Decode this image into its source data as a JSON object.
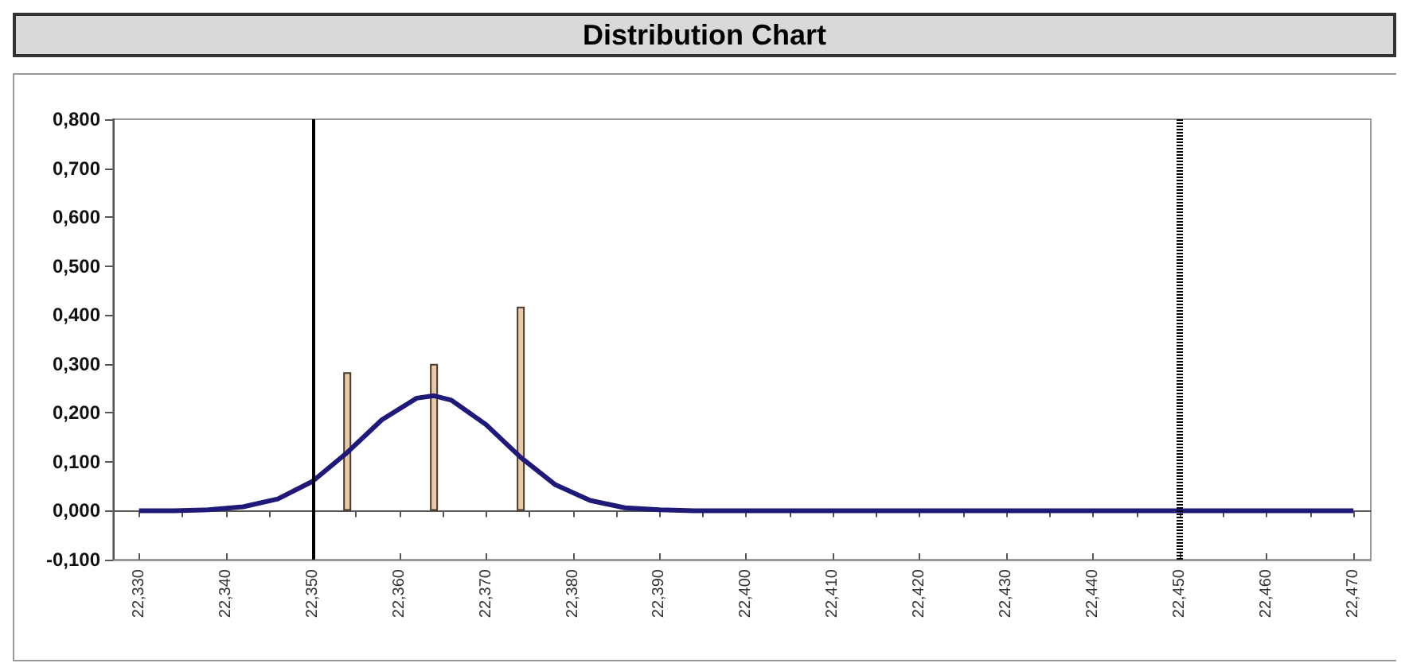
{
  "chart_data": {
    "type": "bar",
    "title": "Distribution Chart",
    "xlim": [
      22.327,
      22.472
    ],
    "xticks": [
      {
        "value": 22.33,
        "label": "22,330"
      },
      {
        "value": 22.335,
        "label": null
      },
      {
        "value": 22.34,
        "label": "22,340"
      },
      {
        "value": 22.345,
        "label": null
      },
      {
        "value": 22.35,
        "label": "22,350"
      },
      {
        "value": 22.355,
        "label": null
      },
      {
        "value": 22.36,
        "label": "22,360"
      },
      {
        "value": 22.365,
        "label": null
      },
      {
        "value": 22.37,
        "label": "22,370"
      },
      {
        "value": 22.375,
        "label": null
      },
      {
        "value": 22.38,
        "label": "22,380"
      },
      {
        "value": 22.385,
        "label": null
      },
      {
        "value": 22.39,
        "label": "22,390"
      },
      {
        "value": 22.395,
        "label": null
      },
      {
        "value": 22.4,
        "label": "22,400"
      },
      {
        "value": 22.405,
        "label": null
      },
      {
        "value": 22.41,
        "label": "22,410"
      },
      {
        "value": 22.415,
        "label": null
      },
      {
        "value": 22.42,
        "label": "22,420"
      },
      {
        "value": 22.425,
        "label": null
      },
      {
        "value": 22.43,
        "label": "22,430"
      },
      {
        "value": 22.435,
        "label": null
      },
      {
        "value": 22.44,
        "label": "22,440"
      },
      {
        "value": 22.445,
        "label": null
      },
      {
        "value": 22.45,
        "label": "22,450"
      },
      {
        "value": 22.455,
        "label": null
      },
      {
        "value": 22.46,
        "label": "22,460"
      },
      {
        "value": 22.465,
        "label": null
      },
      {
        "value": 22.47,
        "label": "22,470"
      }
    ],
    "ylim": [
      -0.1,
      0.8
    ],
    "yticks": [
      {
        "value": -0.1,
        "label": "-0,100"
      },
      {
        "value": 0,
        "label": "0,000"
      },
      {
        "value": 0.1,
        "label": "0,100"
      },
      {
        "value": 0.2,
        "label": "0,200"
      },
      {
        "value": 0.3,
        "label": "0,300"
      },
      {
        "value": 0.4,
        "label": "0,400"
      },
      {
        "value": 0.5,
        "label": "0,500"
      },
      {
        "value": 0.6,
        "label": "0,600"
      },
      {
        "value": 0.7,
        "label": "0,700"
      },
      {
        "value": 0.8,
        "label": "0,800"
      }
    ],
    "grid": false,
    "series": [
      {
        "color": "#e8c9a8",
        "x": [
          22.354,
          22.364,
          22.374
        ],
        "values": [
          0.283,
          0.3,
          0.417
        ]
      },
      {
        "type": "line",
        "color": "#1f1a7a",
        "marker": "none",
        "line_style": "solid",
        "x": [
          22.33,
          22.334,
          22.338,
          22.342,
          22.346,
          22.35,
          22.354,
          22.358,
          22.362,
          22.364,
          22.366,
          22.37,
          22.374,
          22.378,
          22.382,
          22.386,
          22.39,
          22.394,
          22.4,
          22.41,
          22.42,
          22.43,
          22.44,
          22.45,
          22.46,
          22.47
        ],
        "values": [
          0,
          0,
          0.002,
          0.008,
          0.024,
          0.06,
          0.119,
          0.186,
          0.23,
          0.235,
          0.226,
          0.176,
          0.109,
          0.053,
          0.021,
          0.006,
          0.002,
          0,
          0,
          0,
          0,
          0,
          0,
          0,
          0,
          0
        ]
      }
    ],
    "ref_lines": [
      {
        "axis": "x",
        "value": 22.35,
        "label": null,
        "color": "#000000",
        "line_style": "solid"
      },
      {
        "axis": "x",
        "value": 22.45,
        "label": null,
        "color": "#000000",
        "line_style": "dotted"
      }
    ]
  }
}
